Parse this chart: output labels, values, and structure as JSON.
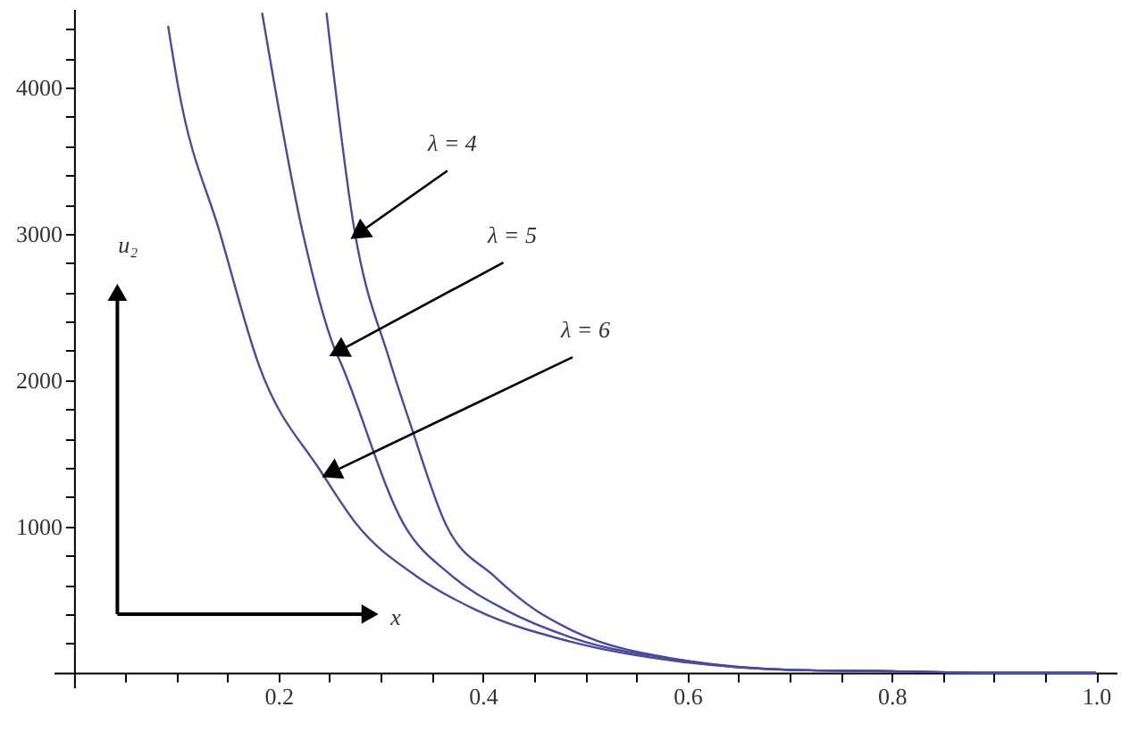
{
  "chart_data": {
    "type": "line",
    "xlabel": "x",
    "ylabel": "u₂",
    "xlim": [
      -0.02,
      1.02
    ],
    "ylim": [
      -100,
      4536
    ],
    "xticks": [
      {
        "value": 0.05,
        "label": null
      },
      {
        "value": 0.1,
        "label": null
      },
      {
        "value": 0.15,
        "label": null
      },
      0.2,
      {
        "value": 0.25,
        "label": null
      },
      {
        "value": 0.3,
        "label": null
      },
      {
        "value": 0.35,
        "label": null
      },
      0.4,
      {
        "value": 0.45,
        "label": null
      },
      {
        "value": 0.5,
        "label": null
      },
      {
        "value": 0.55,
        "label": null
      },
      0.6,
      {
        "value": 0.65,
        "label": null
      },
      {
        "value": 0.7,
        "label": null
      },
      {
        "value": 0.75,
        "label": null
      },
      0.8,
      {
        "value": 0.85,
        "label": null
      },
      {
        "value": 0.9,
        "label": null
      },
      {
        "value": 0.95,
        "label": null
      },
      {
        "value": 1,
        "label": "1.0"
      }
    ],
    "yticks": [
      {
        "value": 200,
        "label": null
      },
      {
        "value": 400,
        "label": null
      },
      {
        "value": 600,
        "label": null
      },
      {
        "value": 800,
        "label": null
      },
      1000,
      {
        "value": 1200,
        "label": null
      },
      {
        "value": 1400,
        "label": null
      },
      {
        "value": 1600,
        "label": null
      },
      {
        "value": 1800,
        "label": null
      },
      2000,
      {
        "value": 2200,
        "label": null
      },
      {
        "value": 2400,
        "label": null
      },
      {
        "value": 2600,
        "label": null
      },
      {
        "value": 2800,
        "label": null
      },
      3000,
      {
        "value": 3200,
        "label": null
      },
      {
        "value": 3400,
        "label": null
      },
      {
        "value": 3600,
        "label": null
      },
      {
        "value": 3800,
        "label": null
      },
      4000,
      {
        "value": 4200,
        "label": null
      },
      {
        "value": 4400,
        "label": null
      }
    ],
    "grid": false,
    "line_style": "solid",
    "marker": "none",
    "series": [
      {
        "color": "#4b4b9b",
        "x": [
          0.247,
          0.274,
          0.309,
          0.329,
          0.364,
          0.411,
          0.451,
          0.487,
          0.6,
          0.7,
          0.8,
          0.9,
          1.0
        ],
        "values": [
          4510,
          3040,
          2130,
          1700,
          1010,
          660,
          430,
          290,
          80,
          20,
          10,
          0,
          0
        ]
      },
      {
        "color": "#4b4b9b",
        "x": [
          0.184,
          0.224,
          0.254,
          0.262,
          0.323,
          0.37,
          0.422,
          0.487,
          0.6,
          0.7,
          0.8,
          0.9,
          1.0
        ],
        "values": [
          4510,
          3000,
          2230,
          2100,
          1010,
          660,
          430,
          240,
          80,
          20,
          10,
          0,
          0
        ]
      },
      {
        "color": "#4b4b9b",
        "x": [
          0.092,
          0.102,
          0.143,
          0.181,
          0.242,
          0.277,
          0.335,
          0.393,
          0.487,
          0.6,
          0.7,
          0.8,
          0.9,
          1.0
        ],
        "values": [
          4420,
          4000,
          3000,
          2100,
          1370,
          1010,
          660,
          430,
          210,
          70,
          20,
          10,
          0,
          0
        ]
      }
    ],
    "annotations": [
      {
        "text": "λ = 4",
        "x": 0.274,
        "y": 3040
      },
      {
        "text": "λ = 5",
        "x": 0.254,
        "y": 2230
      },
      {
        "text": "λ = 6",
        "x": 0.247,
        "y": 1400
      }
    ]
  }
}
